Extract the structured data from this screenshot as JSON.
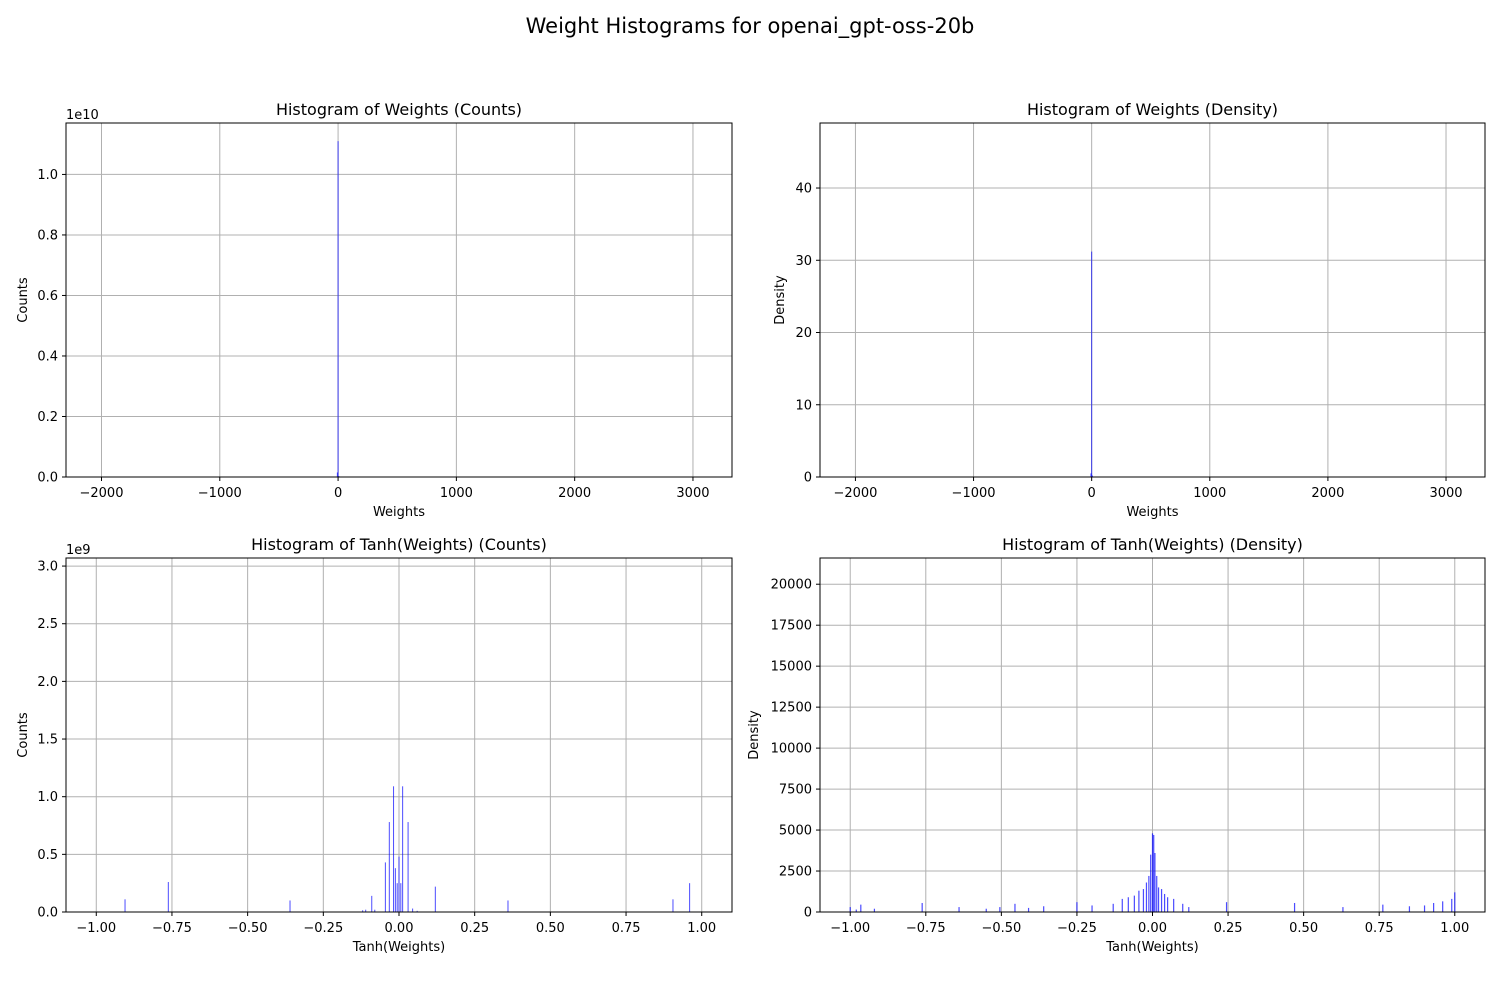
{
  "figure": {
    "suptitle": "Weight Histograms for openai_gpt-oss-20b",
    "bar_color": "#0000ff",
    "grid_color": "#b0b0b0"
  },
  "chart_data": [
    {
      "type": "bar",
      "title": "Histogram of Weights (Counts)",
      "xlabel": "Weights",
      "ylabel": "Counts",
      "offset_label": "1e10",
      "grid": true,
      "xlim": [
        -2300,
        3330
      ],
      "ylim": [
        0,
        11.7
      ],
      "x_ticks": [
        -2000,
        -1000,
        0,
        1000,
        2000,
        3000
      ],
      "x_tick_labels": [
        "−2000",
        "−1000",
        "0",
        "1000",
        "2000",
        "3000"
      ],
      "y_ticks": [
        0,
        0.2,
        0.4,
        0.6,
        0.8,
        1.0
      ],
      "y_tick_labels": [
        "0.0",
        "0.2",
        "0.4",
        "0.6",
        "0.8",
        "1.0"
      ],
      "y_tick_scale": 10,
      "bin_width": 6,
      "bars": [
        [
          -6,
          1.5
        ],
        [
          0,
          111.0
        ],
        [
          6,
          0.3
        ]
      ],
      "bar_unit_scale": 0.1
    },
    {
      "type": "bar",
      "title": "Histogram of Weights (Density)",
      "xlabel": "Weights",
      "ylabel": "Density",
      "offset_label": "",
      "grid": true,
      "xlim": [
        -2300,
        3330
      ],
      "ylim": [
        0,
        49
      ],
      "x_ticks": [
        -2000,
        -1000,
        0,
        1000,
        2000,
        3000
      ],
      "x_tick_labels": [
        "−2000",
        "−1000",
        "0",
        "1000",
        "2000",
        "3000"
      ],
      "y_ticks": [
        0,
        10,
        20,
        30,
        40
      ],
      "y_tick_labels": [
        "0",
        "10",
        "20",
        "30",
        "40"
      ],
      "y_tick_scale": 1,
      "bin_width": 6,
      "bars": [
        [
          -6,
          0.5
        ],
        [
          0,
          31.2
        ],
        [
          6,
          0.2
        ]
      ],
      "bar_unit_scale": 1
    },
    {
      "type": "bar",
      "title": "Histogram of Tanh(Weights) (Counts)",
      "xlabel": "Tanh(Weights)",
      "ylabel": "Counts",
      "offset_label": "1e9",
      "grid": true,
      "xlim": [
        -1.1,
        1.1
      ],
      "ylim": [
        0,
        3.07
      ],
      "x_ticks": [
        -1.0,
        -0.75,
        -0.5,
        -0.25,
        0.0,
        0.25,
        0.5,
        0.75,
        1.0
      ],
      "x_tick_labels": [
        "−1.00",
        "−0.75",
        "−0.50",
        "−0.25",
        "0.00",
        "0.25",
        "0.50",
        "0.75",
        "1.00"
      ],
      "y_ticks": [
        0,
        0.5,
        1.0,
        1.5,
        2.0,
        2.5,
        3.0
      ],
      "y_tick_labels": [
        "0.0",
        "0.5",
        "1.0",
        "1.5",
        "2.0",
        "2.5",
        "3.0"
      ],
      "y_tick_scale": 1,
      "bin_width": 0.002,
      "bars": [
        [
          -0.905,
          0.11
        ],
        [
          -0.762,
          0.26
        ],
        [
          -0.36,
          0.1
        ],
        [
          -0.12,
          0.015
        ],
        [
          -0.11,
          0.02
        ],
        [
          -0.09,
          0.14
        ],
        [
          -0.08,
          0.02
        ],
        [
          -0.045,
          0.43
        ],
        [
          -0.032,
          0.78
        ],
        [
          -0.018,
          1.09
        ],
        [
          -0.012,
          0.38
        ],
        [
          -0.006,
          0.25
        ],
        [
          0.0,
          0.48
        ],
        [
          0.006,
          0.25
        ],
        [
          0.012,
          1.09
        ],
        [
          0.03,
          0.78
        ],
        [
          0.045,
          0.03
        ],
        [
          0.06,
          0.01
        ],
        [
          0.12,
          0.22
        ],
        [
          0.36,
          0.1
        ],
        [
          0.905,
          0.11
        ],
        [
          0.96,
          0.25
        ]
      ],
      "bar_unit_scale": 1
    },
    {
      "type": "bar",
      "title": "Histogram of Tanh(Weights) (Density)",
      "xlabel": "Tanh(Weights)",
      "ylabel": "Density",
      "offset_label": "",
      "grid": true,
      "xlim": [
        -1.1,
        1.1
      ],
      "ylim": [
        0,
        21600
      ],
      "x_ticks": [
        -1.0,
        -0.75,
        -0.5,
        -0.25,
        0.0,
        0.25,
        0.5,
        0.75,
        1.0
      ],
      "x_tick_labels": [
        "−1.00",
        "−0.75",
        "−0.50",
        "−0.25",
        "0.00",
        "0.25",
        "0.50",
        "0.75",
        "1.00"
      ],
      "y_ticks": [
        0,
        2500,
        5000,
        7500,
        10000,
        12500,
        15000,
        17500,
        20000
      ],
      "y_tick_labels": [
        "0",
        "2500",
        "5000",
        "7500",
        "10000",
        "12500",
        "15000",
        "17500",
        "20000"
      ],
      "y_tick_scale": 1,
      "bin_width": 0.004,
      "bars": [
        [
          -1.0,
          300
        ],
        [
          -0.98,
          150
        ],
        [
          -0.965,
          450
        ],
        [
          -0.92,
          200
        ],
        [
          -0.762,
          550
        ],
        [
          -0.64,
          300
        ],
        [
          -0.55,
          200
        ],
        [
          -0.505,
          300
        ],
        [
          -0.455,
          500
        ],
        [
          -0.41,
          250
        ],
        [
          -0.36,
          350
        ],
        [
          -0.25,
          600
        ],
        [
          -0.2,
          400
        ],
        [
          -0.13,
          500
        ],
        [
          -0.1,
          800
        ],
        [
          -0.08,
          900
        ],
        [
          -0.06,
          1000
        ],
        [
          -0.045,
          1300
        ],
        [
          -0.03,
          1400
        ],
        [
          -0.02,
          1800
        ],
        [
          -0.012,
          2200
        ],
        [
          -0.006,
          3500
        ],
        [
          0.0,
          4800
        ],
        [
          0.004,
          4700
        ],
        [
          0.008,
          3600
        ],
        [
          0.014,
          2200
        ],
        [
          0.02,
          1500
        ],
        [
          0.03,
          1400
        ],
        [
          0.04,
          1100
        ],
        [
          0.05,
          900
        ],
        [
          0.07,
          800
        ],
        [
          0.1,
          500
        ],
        [
          0.12,
          300
        ],
        [
          0.245,
          600
        ],
        [
          0.47,
          550
        ],
        [
          0.63,
          300
        ],
        [
          0.762,
          450
        ],
        [
          0.85,
          350
        ],
        [
          0.9,
          400
        ],
        [
          0.93,
          550
        ],
        [
          0.96,
          650
        ],
        [
          0.99,
          800
        ],
        [
          1.0,
          1200
        ]
      ],
      "bar_unit_scale": 1
    }
  ]
}
